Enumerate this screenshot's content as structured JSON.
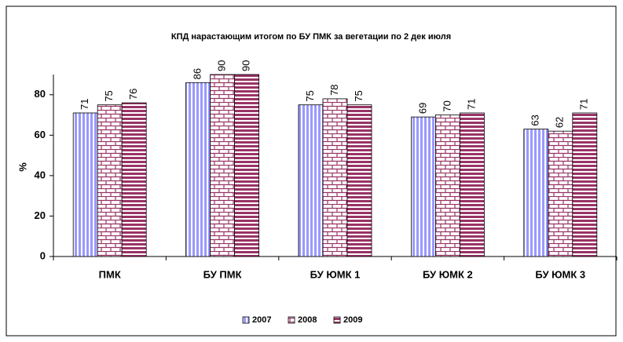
{
  "chart_data": {
    "type": "bar",
    "title": "КПД нарастающим итогом по БУ ПМК за вегетации по 2 дек июля",
    "y_label": "%",
    "categories": [
      "ПМК",
      "БУ ПМК",
      "БУ ЮМК 1",
      "БУ ЮМК 2",
      "БУ ЮМК 3"
    ],
    "series": [
      {
        "name": "2007",
        "color": "#9999ff",
        "values": [
          71,
          86,
          75,
          69,
          63
        ]
      },
      {
        "name": "2008",
        "color": "#993366",
        "values": [
          75,
          90,
          78,
          70,
          62
        ]
      },
      {
        "name": "2009",
        "color": "#993366",
        "values": [
          76,
          90,
          75,
          71,
          71
        ]
      }
    ],
    "ylim": [
      0,
      90
    ],
    "yticks": [
      0,
      20,
      40,
      60,
      80
    ],
    "legend": "bottom"
  }
}
